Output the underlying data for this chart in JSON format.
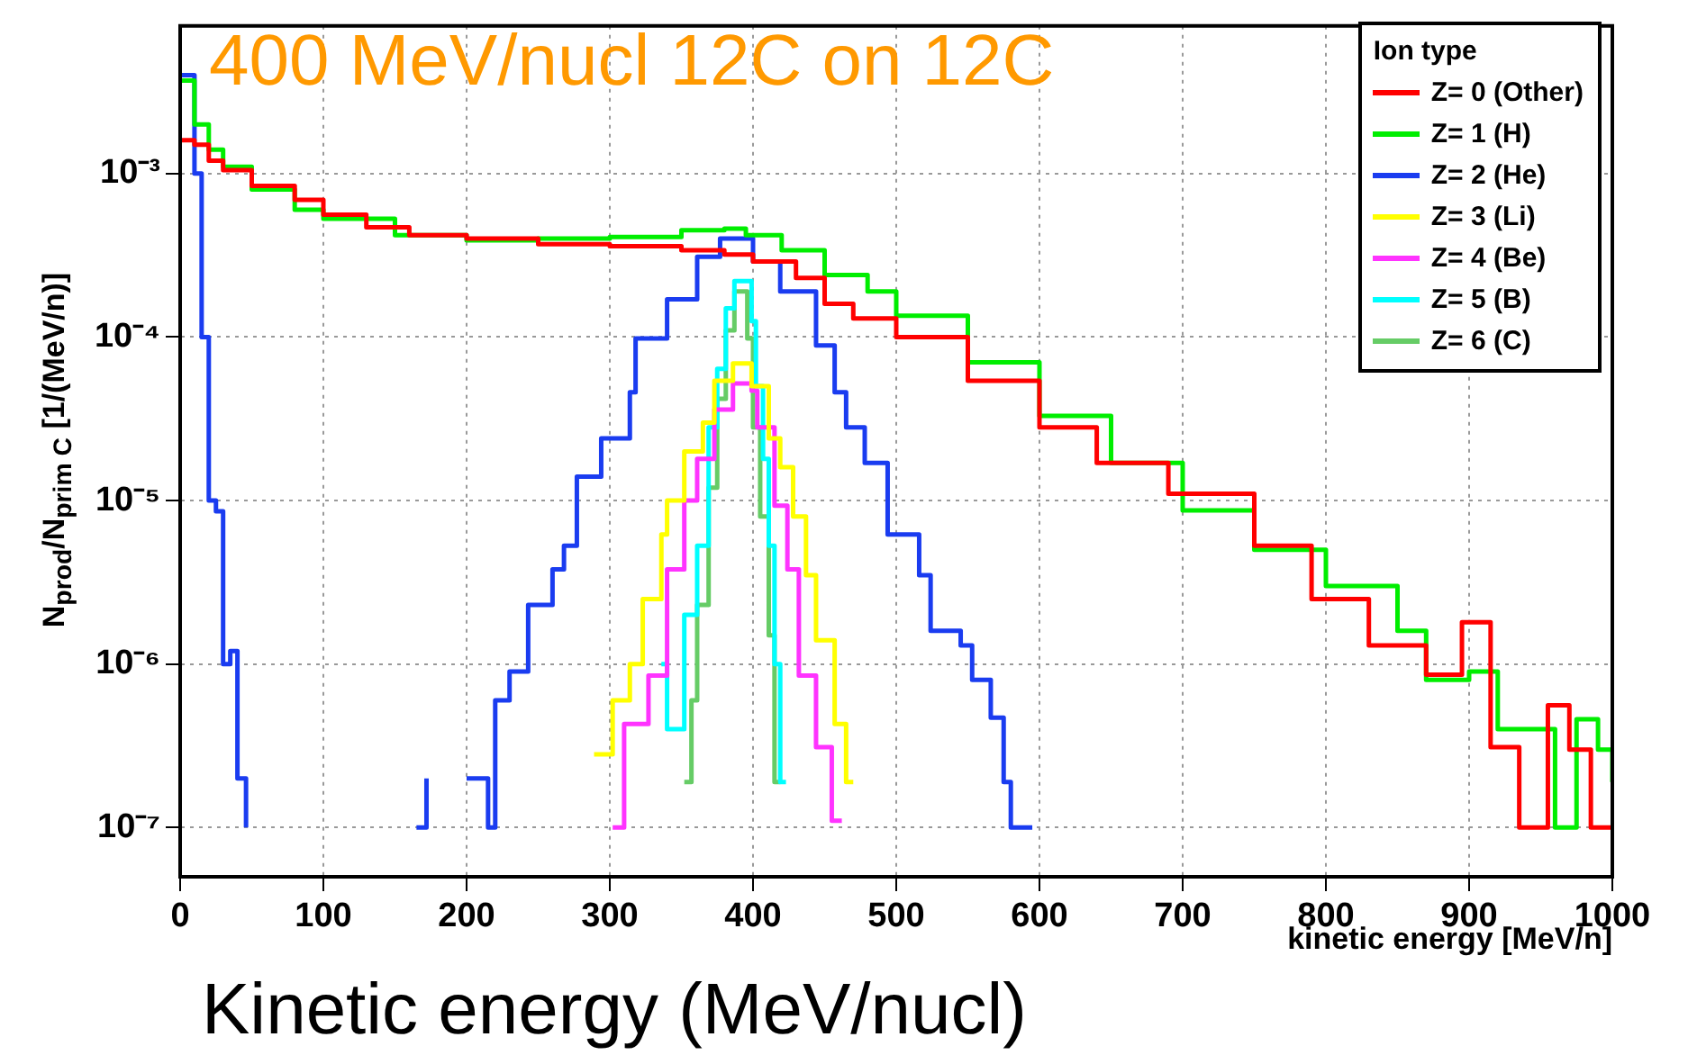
{
  "chart_data": {
    "type": "step",
    "title": "400 MeV/nucl 12C on 12C",
    "xlabel": "kinetic energy [MeV/n]",
    "ylabel": "N$_{prod}$/N$_{prim C}$ [1/(MeV/n)]",
    "legend_title": "Ion type",
    "annotations": [
      "Kinetic energy (MeV/nucl)"
    ],
    "xlim": [
      0,
      1000
    ],
    "xticks": [
      0,
      100,
      200,
      300,
      400,
      500,
      600,
      700,
      800,
      900,
      1000
    ],
    "ylim": [
      5e-08,
      0.008
    ],
    "yticks": [
      {
        "value": 1e-07,
        "label": "10⁻⁷"
      },
      {
        "value": 1e-06,
        "label": "10⁻⁶"
      },
      {
        "value": 1e-05,
        "label": "10⁻⁵"
      },
      {
        "value": 0.0001,
        "label": "10⁻⁴"
      },
      {
        "value": 0.001,
        "label": "10⁻³"
      }
    ],
    "log": "y",
    "grid": true,
    "legend": "top right",
    "line_style": "solid",
    "marker": "none",
    "series": [
      {
        "name": "Z= 0 (Other)",
        "color": "#ff0000",
        "x": [
          0,
          10,
          20,
          30,
          50,
          80,
          100,
          130,
          160,
          200,
          250,
          300,
          350,
          380,
          400,
          430,
          450,
          470,
          500,
          550,
          600,
          640,
          690,
          750,
          790,
          830,
          870,
          895,
          915,
          935,
          955,
          970,
          985,
          1000
        ],
        "values": [
          0.0016,
          0.0015,
          0.0012,
          0.00105,
          0.00084,
          0.00069,
          0.00056,
          0.00047,
          0.00042,
          0.0004,
          0.00037,
          0.00036,
          0.00034,
          0.00032,
          0.00029,
          0.00023,
          0.00016,
          0.00013,
          0.0001,
          5.4e-05,
          2.8e-05,
          1.7e-05,
          1.1e-05,
          5.3e-06,
          2.5e-06,
          1.3e-06,
          8.6e-07,
          1.8e-06,
          3.1e-07,
          1e-07,
          5.6e-07,
          3e-07,
          1e-07,
          1e-07
        ]
      },
      {
        "name": "Z= 1 (H)",
        "color": "#00ee00",
        "x": [
          0,
          10,
          20,
          30,
          50,
          80,
          100,
          150,
          200,
          250,
          300,
          350,
          380,
          395,
          420,
          450,
          480,
          500,
          550,
          600,
          650,
          700,
          750,
          800,
          850,
          870,
          900,
          920,
          940,
          960,
          975,
          990,
          1000
        ],
        "values": [
          0.0037,
          0.002,
          0.0014,
          0.0011,
          0.0008,
          0.0006,
          0.00053,
          0.00042,
          0.00039,
          0.0004,
          0.00041,
          0.00045,
          0.00046,
          0.00042,
          0.00034,
          0.00024,
          0.00019,
          0.000135,
          7e-05,
          3.3e-05,
          1.7e-05,
          8.7e-06,
          5e-06,
          3e-06,
          1.6e-06,
          8e-07,
          9e-07,
          4e-07,
          4e-07,
          1e-07,
          4.6e-07,
          3e-07,
          1.9e-07
        ]
      },
      {
        "name": "Z= 2 (He)",
        "color": "#1a3cf0",
        "x": [
          0,
          10,
          15,
          20,
          25,
          30,
          35,
          40,
          46,
          50,
          165,
          172,
          185,
          200,
          210,
          215,
          220,
          230,
          243,
          260,
          268,
          277,
          294,
          314,
          318,
          340,
          361,
          377,
          395,
          400,
          419,
          444,
          457,
          465,
          478,
          494,
          516,
          524,
          545,
          553,
          566,
          575,
          580,
          595
        ],
        "values": [
          0.004,
          0.001,
          0.0001,
          1e-05,
          8.6e-06,
          1e-06,
          1.2e-06,
          2e-07,
          1e-07,
          null,
          1e-07,
          2e-07,
          null,
          2e-07,
          2e-07,
          1e-07,
          6e-07,
          9e-07,
          2.3e-06,
          3.8e-06,
          5.3e-06,
          1.4e-05,
          2.4e-05,
          4.6e-05,
          9.8e-05,
          0.00017,
          0.00031,
          0.0004,
          0.0004,
          0.00029,
          0.00019,
          8.9e-05,
          4.6e-05,
          2.8e-05,
          1.7e-05,
          6.2e-06,
          3.5e-06,
          1.6e-06,
          1.3e-06,
          8e-07,
          4.7e-07,
          1.9e-07,
          1e-07,
          1e-07
        ]
      },
      {
        "name": "Z= 3 (Li)",
        "color": "#ffff00",
        "x": [
          289,
          302,
          314,
          323,
          336,
          340,
          352,
          365,
          373,
          386,
          399,
          411,
          419,
          428,
          437,
          444,
          457,
          465,
          470
        ],
        "values": [
          2.8e-07,
          6e-07,
          1e-06,
          2.5e-06,
          6.2e-06,
          1e-05,
          2e-05,
          3e-05,
          5.4e-05,
          6.9e-05,
          5e-05,
          2.4e-05,
          1.6e-05,
          8e-06,
          3.5e-06,
          1.4e-06,
          4.3e-07,
          1.9e-07,
          1.9e-07
        ]
      },
      {
        "name": "Z= 4 (Be)",
        "color": "#ff33ff",
        "x": [
          302,
          310,
          327,
          340,
          352,
          361,
          373,
          386,
          399,
          403,
          415,
          424,
          432,
          444,
          455,
          462
        ],
        "values": [
          1e-07,
          4.3e-07,
          8.5e-07,
          3.8e-06,
          1e-05,
          1.8e-05,
          3.6e-05,
          5.2e-05,
          4.7e-05,
          2.8e-05,
          9.3e-06,
          3.8e-06,
          8.5e-07,
          3.1e-07,
          1.1e-07,
          1.1e-07
        ]
      },
      {
        "name": "Z= 5 (B)",
        "color": "#00ffff",
        "x": [
          336,
          340,
          352,
          361,
          369,
          375,
          381,
          387,
          399,
          402,
          407,
          411,
          415,
          419,
          423
        ],
        "values": [
          1e-06,
          4e-07,
          2e-06,
          5.3e-06,
          2.8e-05,
          6.4e-05,
          0.00015,
          0.00022,
          0.000125,
          5e-05,
          1.8e-05,
          5.3e-06,
          1e-06,
          1.9e-07,
          1.9e-07
        ]
      },
      {
        "name": "Z= 6 (C)",
        "color": "#66cc66",
        "x": [
          352,
          357,
          361,
          369,
          375,
          381,
          387,
          396,
          400,
          405,
          411,
          415,
          419
        ],
        "values": [
          1.9e-07,
          6e-07,
          2.3e-06,
          1.2e-05,
          4.2e-05,
          0.00011,
          0.00019,
          9.8e-05,
          2.8e-05,
          8e-06,
          1.5e-06,
          1.9e-07,
          1.9e-07
        ]
      }
    ]
  }
}
